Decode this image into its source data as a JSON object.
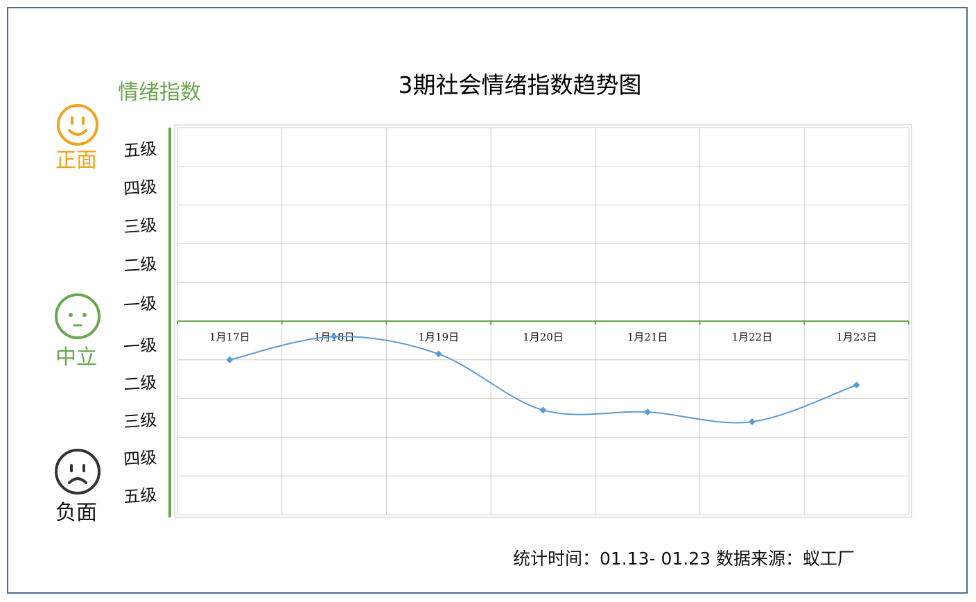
{
  "chart_data": {
    "type": "line",
    "title": "3期社会情绪指数趋势图",
    "ylabel": "情绪指数",
    "categories": [
      "1月17日",
      "1月18日",
      "1月19日",
      "1月20日",
      "1月21日",
      "1月22日",
      "1月23日"
    ],
    "series": [
      {
        "values": [
          -1.0,
          -0.4,
          -0.85,
          -2.3,
          -2.35,
          -2.6,
          -1.65
        ]
      }
    ],
    "ylim": [
      -5,
      5
    ],
    "y_tick_labels": [
      "五级",
      "四级",
      "三级",
      "二级",
      "一级",
      "一级",
      "二级",
      "三级",
      "四级",
      "五级"
    ],
    "grid": true,
    "line_color": "#5b9bd5",
    "zero_line_color": "#6aa84f"
  },
  "legend_faces": {
    "positive": {
      "label": "正面",
      "color": "#f0a31e",
      "icon": "smiley-face-icon"
    },
    "neutral": {
      "label": "中立",
      "color": "#6aa84f",
      "icon": "neutral-face-icon"
    },
    "negative": {
      "label": "负面",
      "color": "#333333",
      "icon": "sad-face-icon"
    }
  },
  "footer": "统计时间：01.13- 01.23 数据来源：蚁工厂"
}
